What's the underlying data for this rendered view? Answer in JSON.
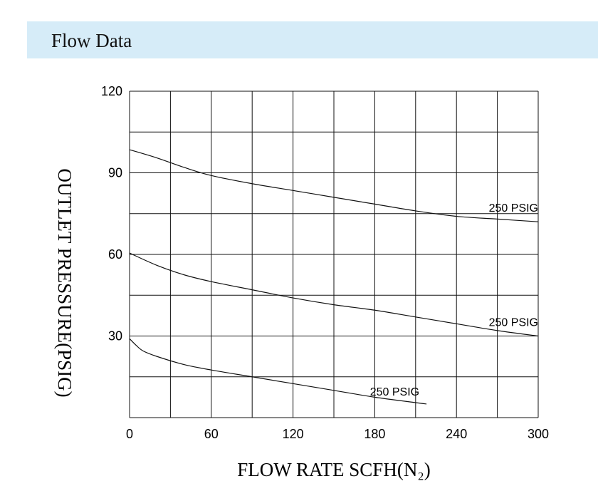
{
  "header": {
    "title": "Flow Data",
    "band_color": "#d6ecf8"
  },
  "chart_data": {
    "type": "line",
    "title": "",
    "xlabel": "FLOW RATE SCFH(N₂)",
    "ylabel": "OUTLET PRESSURE(PSIG)",
    "xlim": [
      0,
      300
    ],
    "ylim": [
      0,
      120
    ],
    "x_ticks": [
      0,
      60,
      120,
      180,
      240,
      300
    ],
    "x_tick_labels": [
      "0",
      "60",
      "120",
      "180",
      "240",
      "300"
    ],
    "y_ticks": [
      30,
      60,
      90,
      120
    ],
    "y_tick_labels": [
      "30",
      "60",
      "90",
      "120"
    ],
    "x_gridlines": [
      0,
      30,
      60,
      90,
      120,
      150,
      180,
      210,
      240,
      270,
      300
    ],
    "y_gridlines": [
      0,
      15,
      30,
      45,
      60,
      75,
      90,
      105,
      120
    ],
    "grid": true,
    "series": [
      {
        "name": "upper",
        "label": "250 PSIG",
        "label_position": "above-right",
        "x": [
          0,
          20,
          40,
          60,
          90,
          120,
          150,
          180,
          210,
          240,
          270,
          300
        ],
        "y": [
          98.5,
          95.5,
          92,
          89,
          86,
          83.5,
          81,
          78.5,
          76,
          74,
          73,
          72
        ]
      },
      {
        "name": "middle",
        "label": "250 PSIG",
        "label_position": "above-right",
        "x": [
          0,
          20,
          40,
          60,
          90,
          120,
          150,
          180,
          210,
          240,
          270,
          300
        ],
        "y": [
          60.5,
          56,
          52.5,
          50,
          47,
          44,
          41.5,
          39.5,
          37,
          34.5,
          32,
          30
        ]
      },
      {
        "name": "lower",
        "label": "250 PSIG",
        "label_position": "above-end",
        "x": [
          0,
          5,
          10,
          20,
          40,
          60,
          90,
          120,
          150,
          180,
          210,
          218
        ],
        "y": [
          29,
          26.5,
          24.5,
          22.5,
          19.5,
          17.5,
          15,
          12.5,
          10,
          7.5,
          5.5,
          5
        ]
      }
    ]
  }
}
